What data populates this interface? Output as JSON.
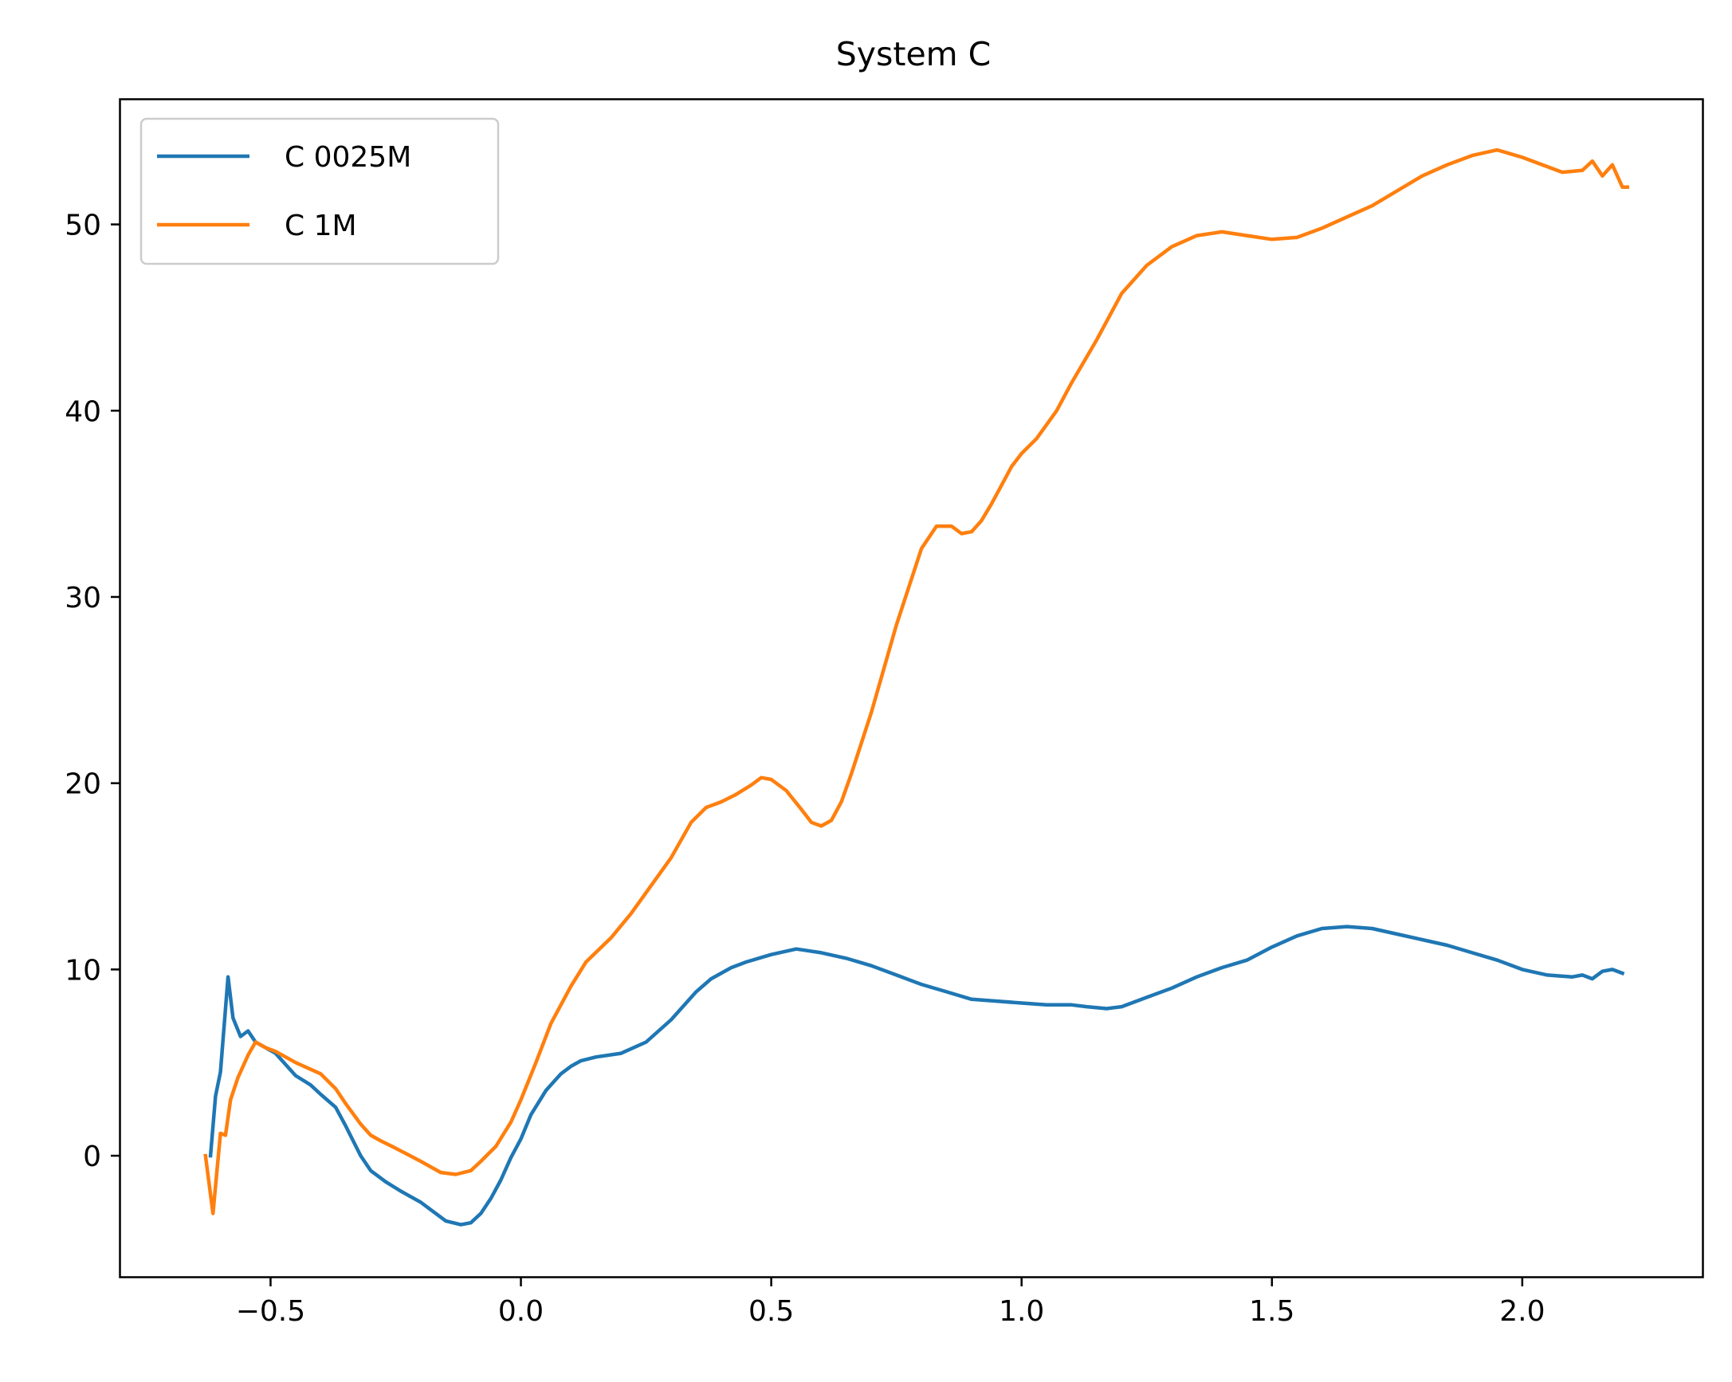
{
  "chart_data": {
    "type": "line",
    "title": "System C",
    "xlabel": "",
    "ylabel": "",
    "xlim": [
      -0.8,
      2.36
    ],
    "ylim": [
      -6.5,
      56.7
    ],
    "xticks": [
      -0.5,
      0.0,
      0.5,
      1.0,
      1.5,
      2.0
    ],
    "xtick_labels": [
      "−0.5",
      "0.0",
      "0.5",
      "1.0",
      "1.5",
      "2.0"
    ],
    "yticks": [
      0,
      10,
      20,
      30,
      40,
      50
    ],
    "ytick_labels": [
      "0",
      "10",
      "20",
      "30",
      "40",
      "50"
    ],
    "grid": false,
    "legend_position": "upper left",
    "series": [
      {
        "name": "C 0025M",
        "color": "#1f77b4",
        "x": [
          -0.62,
          -0.61,
          -0.6,
          -0.585,
          -0.575,
          -0.56,
          -0.545,
          -0.53,
          -0.51,
          -0.49,
          -0.47,
          -0.45,
          -0.42,
          -0.4,
          -0.37,
          -0.35,
          -0.32,
          -0.3,
          -0.27,
          -0.24,
          -0.2,
          -0.18,
          -0.15,
          -0.12,
          -0.1,
          -0.08,
          -0.06,
          -0.04,
          -0.02,
          0.0,
          0.02,
          0.05,
          0.08,
          0.1,
          0.12,
          0.15,
          0.2,
          0.25,
          0.3,
          0.35,
          0.38,
          0.42,
          0.45,
          0.5,
          0.55,
          0.6,
          0.65,
          0.7,
          0.75,
          0.8,
          0.85,
          0.9,
          0.95,
          1.0,
          1.05,
          1.08,
          1.1,
          1.13,
          1.17,
          1.2,
          1.25,
          1.3,
          1.35,
          1.4,
          1.45,
          1.5,
          1.55,
          1.6,
          1.65,
          1.7,
          1.75,
          1.8,
          1.85,
          1.9,
          1.95,
          2.0,
          2.05,
          2.1,
          2.12,
          2.14,
          2.16,
          2.18,
          2.2
        ],
        "y": [
          0.0,
          3.2,
          4.5,
          9.6,
          7.4,
          6.4,
          6.7,
          6.1,
          5.8,
          5.5,
          4.9,
          4.3,
          3.8,
          3.3,
          2.6,
          1.6,
          0.0,
          -0.8,
          -1.4,
          -1.9,
          -2.5,
          -2.9,
          -3.5,
          -3.7,
          -3.6,
          -3.1,
          -2.3,
          -1.3,
          -0.1,
          0.9,
          2.2,
          3.5,
          4.4,
          4.8,
          5.1,
          5.3,
          5.5,
          6.1,
          7.3,
          8.8,
          9.5,
          10.1,
          10.4,
          10.8,
          11.1,
          10.9,
          10.6,
          10.2,
          9.7,
          9.2,
          8.8,
          8.4,
          8.3,
          8.2,
          8.1,
          8.1,
          8.1,
          8.0,
          7.9,
          8.0,
          8.5,
          9.0,
          9.6,
          10.1,
          10.5,
          11.2,
          11.8,
          12.2,
          12.3,
          12.2,
          11.9,
          11.6,
          11.3,
          10.9,
          10.5,
          10.0,
          9.7,
          9.6,
          9.7,
          9.5,
          9.9,
          10.0,
          9.8
        ]
      },
      {
        "name": "C 1M",
        "color": "#ff7f0e",
        "x": [
          -0.63,
          -0.615,
          -0.6,
          -0.59,
          -0.58,
          -0.565,
          -0.545,
          -0.53,
          -0.51,
          -0.49,
          -0.45,
          -0.4,
          -0.37,
          -0.35,
          -0.32,
          -0.3,
          -0.28,
          -0.25,
          -0.2,
          -0.16,
          -0.13,
          -0.1,
          -0.08,
          -0.05,
          -0.02,
          0.0,
          0.03,
          0.06,
          0.1,
          0.13,
          0.18,
          0.22,
          0.26,
          0.3,
          0.34,
          0.37,
          0.4,
          0.43,
          0.46,
          0.48,
          0.5,
          0.53,
          0.56,
          0.58,
          0.6,
          0.62,
          0.64,
          0.66,
          0.7,
          0.75,
          0.8,
          0.83,
          0.86,
          0.88,
          0.9,
          0.92,
          0.94,
          0.96,
          0.98,
          1.0,
          1.03,
          1.07,
          1.1,
          1.15,
          1.2,
          1.25,
          1.3,
          1.35,
          1.4,
          1.45,
          1.5,
          1.55,
          1.6,
          1.65,
          1.7,
          1.75,
          1.8,
          1.85,
          1.9,
          1.95,
          2.0,
          2.05,
          2.08,
          2.12,
          2.14,
          2.16,
          2.18,
          2.2,
          2.21
        ],
        "y": [
          0.0,
          -3.1,
          1.2,
          1.1,
          3.0,
          4.2,
          5.4,
          6.1,
          5.8,
          5.6,
          5.0,
          4.4,
          3.6,
          2.8,
          1.7,
          1.1,
          0.8,
          0.4,
          -0.3,
          -0.9,
          -1.0,
          -0.8,
          -0.3,
          0.5,
          1.8,
          3.0,
          5.0,
          7.1,
          9.1,
          10.4,
          11.7,
          13.0,
          14.5,
          16.0,
          17.9,
          18.7,
          19.0,
          19.4,
          19.9,
          20.3,
          20.2,
          19.6,
          18.6,
          17.9,
          17.7,
          18.0,
          19.0,
          20.5,
          23.8,
          28.5,
          32.6,
          33.8,
          33.8,
          33.4,
          33.5,
          34.1,
          35.0,
          36.0,
          37.0,
          37.7,
          38.5,
          40.0,
          41.5,
          43.8,
          46.3,
          47.8,
          48.8,
          49.4,
          49.6,
          49.4,
          49.2,
          49.3,
          49.8,
          50.4,
          51.0,
          51.8,
          52.6,
          53.2,
          53.7,
          54.0,
          53.6,
          53.1,
          52.8,
          52.9,
          53.4,
          52.6,
          53.2,
          52.0,
          52.0
        ]
      }
    ]
  }
}
